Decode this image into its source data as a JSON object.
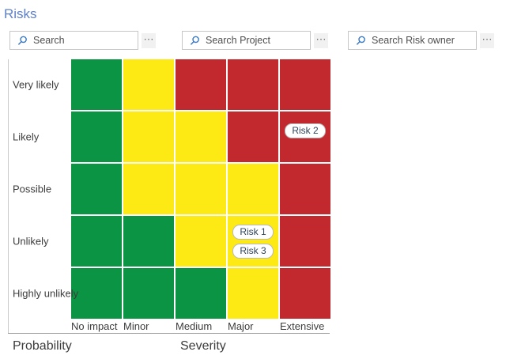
{
  "page": {
    "title": "Risks"
  },
  "theme": {
    "title_blue": "#5d80c8",
    "search_icon_blue": "#3b79c2"
  },
  "icons": {
    "more_ellipsis": "⋯",
    "search_icon": "magnifier"
  },
  "search_bars": [
    {
      "placeholder": "Search",
      "value": ""
    },
    {
      "placeholder": "Search Project",
      "value": ""
    },
    {
      "placeholder": "Search Risk owner",
      "value": ""
    }
  ],
  "matrix": {
    "type": "heatmap",
    "y_axis_title": "Probability",
    "x_axis_title": "Severity",
    "rows": [
      "Very likely",
      "Likely",
      "Possible",
      "Unlikely",
      "Highly unlikely"
    ],
    "columns": [
      "No impact",
      "Minor",
      "Medium",
      "Major",
      "Extensive"
    ],
    "colors": {
      "green": "#0b9444",
      "yellow": "#fdea14",
      "red": "#c2292e"
    },
    "cells": [
      [
        "green",
        "yellow",
        "red",
        "red",
        "red"
      ],
      [
        "green",
        "yellow",
        "yellow",
        "red",
        "red"
      ],
      [
        "green",
        "yellow",
        "yellow",
        "yellow",
        "red"
      ],
      [
        "green",
        "green",
        "yellow",
        "yellow",
        "red"
      ],
      [
        "green",
        "green",
        "green",
        "yellow",
        "red"
      ]
    ],
    "risks": [
      {
        "label": "Risk 2",
        "row": 1,
        "col": 4
      },
      {
        "label": "Risk 1",
        "row": 3,
        "col": 3
      },
      {
        "label": "Risk 3",
        "row": 3,
        "col": 3
      }
    ]
  }
}
